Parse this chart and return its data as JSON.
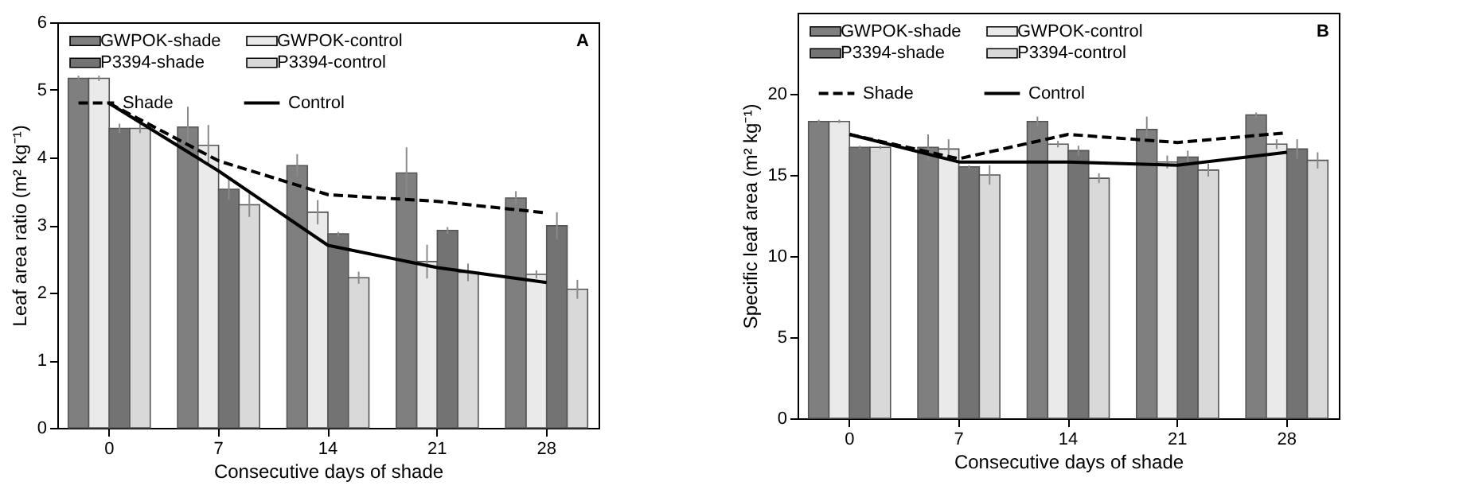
{
  "chart_data": [
    {
      "type": "bar",
      "xlabel": "Consecutive days of shade",
      "ylabel": "Leaf area ratio (m² kg⁻¹)",
      "categories": [
        "0",
        "7",
        "14",
        "21",
        "28"
      ],
      "ylim": [
        0,
        6
      ],
      "yticks": [
        0,
        1,
        2,
        3,
        4,
        5,
        6
      ],
      "grid": false,
      "legend": "top",
      "annotations": [
        "A"
      ],
      "series": [
        {
          "name": "GWPOK-shade",
          "color": "#7f7f7f",
          "values": [
            5.17,
            4.45,
            3.88,
            3.77,
            3.4
          ],
          "errors": [
            0.04,
            0.3,
            0.17,
            0.38,
            0.1
          ]
        },
        {
          "name": "GWPOK-control",
          "color": "#eaeaea",
          "values": [
            5.17,
            4.18,
            3.19,
            2.46,
            2.27
          ],
          "errors": [
            0.04,
            0.3,
            0.18,
            0.25,
            0.06
          ]
        },
        {
          "name": "P3394-shade",
          "color": "#737373",
          "values": [
            4.43,
            3.53,
            2.87,
            2.92,
            2.99
          ],
          "errors": [
            0.07,
            0.15,
            0.03,
            0.05,
            0.2
          ]
        },
        {
          "name": "P3394-control",
          "color": "#d9d9d9",
          "values": [
            4.43,
            3.3,
            2.22,
            2.3,
            2.05
          ],
          "errors": [
            0.07,
            0.18,
            0.09,
            0.13,
            0.14
          ]
        },
        {
          "name": "Shade",
          "type": "line",
          "line_style": "dashed",
          "color": "#000000",
          "values": [
            4.8,
            3.95,
            3.45,
            3.35,
            3.18
          ]
        },
        {
          "name": "Control",
          "type": "line",
          "line_style": "solid",
          "color": "#000000",
          "values": [
            4.8,
            3.8,
            2.7,
            2.37,
            2.15
          ]
        }
      ]
    },
    {
      "type": "bar",
      "xlabel": "Consecutive days of shade",
      "ylabel": "Specific leaf area (m² kg⁻¹)",
      "categories": [
        "0",
        "7",
        "14",
        "21",
        "28"
      ],
      "ylim": [
        0,
        25
      ],
      "yticks": [
        0,
        5,
        10,
        15,
        20
      ],
      "grid": false,
      "legend": "top",
      "annotations": [
        "B"
      ],
      "series": [
        {
          "name": "GWPOK-shade",
          "color": "#7f7f7f",
          "values": [
            18.3,
            16.7,
            18.3,
            17.8,
            18.7
          ],
          "errors": [
            0.1,
            0.8,
            0.3,
            0.8,
            0.15
          ]
        },
        {
          "name": "GWPOK-control",
          "color": "#eaeaea",
          "values": [
            18.3,
            16.6,
            16.9,
            15.8,
            16.9
          ],
          "errors": [
            0.1,
            0.6,
            0.2,
            0.4,
            0.3
          ]
        },
        {
          "name": "P3394-shade",
          "color": "#737373",
          "values": [
            16.7,
            15.5,
            16.5,
            16.1,
            16.6
          ],
          "errors": [
            0.1,
            0.1,
            0.3,
            0.4,
            0.6
          ]
        },
        {
          "name": "P3394-control",
          "color": "#d9d9d9",
          "values": [
            16.7,
            15.0,
            14.8,
            15.3,
            15.9
          ],
          "errors": [
            0.1,
            0.6,
            0.3,
            0.4,
            0.5
          ]
        },
        {
          "name": "Shade",
          "type": "line",
          "line_style": "dashed",
          "color": "#000000",
          "values": [
            17.5,
            16.0,
            17.5,
            17.0,
            17.6
          ]
        },
        {
          "name": "Control",
          "type": "line",
          "line_style": "solid",
          "color": "#000000",
          "values": [
            17.5,
            15.8,
            15.8,
            15.6,
            16.4
          ]
        }
      ]
    }
  ]
}
